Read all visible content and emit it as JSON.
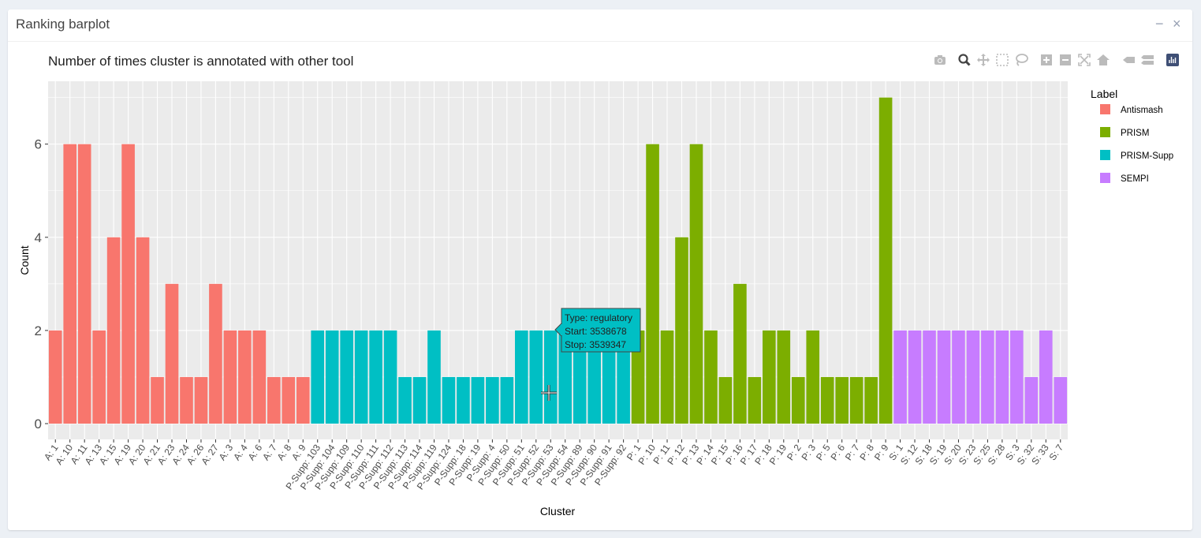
{
  "panel": {
    "title": "Ranking barplot",
    "minimize_label": "−",
    "close_label": "×"
  },
  "modebar": {
    "tools": [
      "camera-icon",
      "zoom-icon",
      "pan-icon",
      "box-select-icon",
      "lasso-icon",
      "zoom-in-icon",
      "zoom-out-icon",
      "autoscale-icon",
      "reset-axes-icon",
      "hover-closest-icon",
      "hover-compare-icon",
      "plotly-logo-icon"
    ]
  },
  "tooltip": {
    "line1": "Type: regulatory",
    "line2": "Start: 3538678",
    "line3": "Stop: 3539347"
  },
  "colors": {
    "Antismash": "#F8766D",
    "PRISM": "#7CAE00",
    "PRISM-Supp": "#00BFC4",
    "SEMPI": "#C77CFF"
  },
  "chart_data": {
    "type": "bar",
    "title": "Number of times cluster is annotated with other tool",
    "xlabel": "Cluster",
    "ylabel": "Count",
    "ylim": [
      0,
      7.35
    ],
    "yticks": [
      0,
      2,
      4,
      6
    ],
    "grid": true,
    "legend_title": "Label",
    "legend_position": "right",
    "categories": [
      "A: 1",
      "A: 10",
      "A: 11",
      "A: 13",
      "A: 15",
      "A: 19",
      "A: 20",
      "A: 21",
      "A: 23",
      "A: 24",
      "A: 26",
      "A: 27",
      "A: 3",
      "A: 4",
      "A: 6",
      "A: 7",
      "A: 8",
      "A: 9",
      "P-Supp: 103",
      "P-Supp: 104",
      "P-Supp: 109",
      "P-Supp: 110",
      "P-Supp: 111",
      "P-Supp: 112",
      "P-Supp: 113",
      "P-Supp: 114",
      "P-Supp: 119",
      "P-Supp: 124",
      "P-Supp: 18",
      "P-Supp: 19",
      "P-Supp: 4",
      "P-Supp: 50",
      "P-Supp: 51",
      "P-Supp: 52",
      "P-Supp: 53",
      "P-Supp: 54",
      "P-Supp: 89",
      "P-Supp: 90",
      "P-Supp: 91",
      "P-Supp: 92",
      "P: 1",
      "P: 10",
      "P: 11",
      "P: 12",
      "P: 13",
      "P: 14",
      "P: 15",
      "P: 16",
      "P: 17",
      "P: 18",
      "P: 19",
      "P: 2",
      "P: 3",
      "P: 5",
      "P: 6",
      "P: 7",
      "P: 8",
      "P: 9",
      "S: 1",
      "S: 12",
      "S: 18",
      "S: 19",
      "S: 20",
      "S: 23",
      "S: 25",
      "S: 28",
      "S: 3",
      "S: 32",
      "S: 33",
      "S: 7"
    ],
    "values": [
      2,
      6,
      6,
      2,
      4,
      6,
      4,
      1,
      3,
      1,
      1,
      3,
      2,
      2,
      2,
      1,
      1,
      1,
      2,
      2,
      2,
      2,
      2,
      2,
      1,
      1,
      2,
      1,
      1,
      1,
      1,
      1,
      2,
      2,
      2,
      2,
      2,
      2,
      2,
      2,
      2,
      6,
      2,
      4,
      6,
      2,
      1,
      3,
      1,
      2,
      2,
      1,
      2,
      1,
      1,
      1,
      1,
      7,
      2,
      2,
      2,
      2,
      2,
      2,
      2,
      2,
      2,
      1,
      2,
      1
    ],
    "series_labels": [
      "Antismash",
      "Antismash",
      "Antismash",
      "Antismash",
      "Antismash",
      "Antismash",
      "Antismash",
      "Antismash",
      "Antismash",
      "Antismash",
      "Antismash",
      "Antismash",
      "Antismash",
      "Antismash",
      "Antismash",
      "Antismash",
      "Antismash",
      "Antismash",
      "PRISM-Supp",
      "PRISM-Supp",
      "PRISM-Supp",
      "PRISM-Supp",
      "PRISM-Supp",
      "PRISM-Supp",
      "PRISM-Supp",
      "PRISM-Supp",
      "PRISM-Supp",
      "PRISM-Supp",
      "PRISM-Supp",
      "PRISM-Supp",
      "PRISM-Supp",
      "PRISM-Supp",
      "PRISM-Supp",
      "PRISM-Supp",
      "PRISM-Supp",
      "PRISM-Supp",
      "PRISM-Supp",
      "PRISM-Supp",
      "PRISM-Supp",
      "PRISM-Supp",
      "PRISM",
      "PRISM",
      "PRISM",
      "PRISM",
      "PRISM",
      "PRISM",
      "PRISM",
      "PRISM",
      "PRISM",
      "PRISM",
      "PRISM",
      "PRISM",
      "PRISM",
      "PRISM",
      "PRISM",
      "PRISM",
      "PRISM",
      "PRISM",
      "SEMPI",
      "SEMPI",
      "SEMPI",
      "SEMPI",
      "SEMPI",
      "SEMPI",
      "SEMPI",
      "SEMPI",
      "SEMPI",
      "SEMPI",
      "SEMPI",
      "SEMPI"
    ],
    "legend": [
      "Antismash",
      "PRISM",
      "PRISM-Supp",
      "SEMPI"
    ],
    "hovered_category": "P-Supp: 53"
  }
}
